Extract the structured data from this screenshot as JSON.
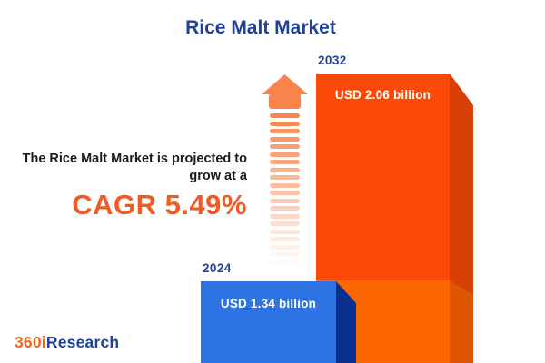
{
  "title": "Rice Malt Market",
  "projection": {
    "line1": "The Rice Malt Market is projected to",
    "line2": "grow at a",
    "cagr_label": "CAGR 5.49%"
  },
  "bars": [
    {
      "year": "2024",
      "value_label": "USD 1.34 billion"
    },
    {
      "year": "2032",
      "value_label": "USD 2.06 billion"
    }
  ],
  "arrow": {
    "dash_count": 20
  },
  "logo": {
    "prefix": "360i",
    "suffix": "Research"
  },
  "colors": {
    "title_blue": "#21409B",
    "text_dark": "#1B1B1B",
    "accent_orange": "#F15A22",
    "blue_front": "#2E73E4",
    "blue_side": "#08318F",
    "orange_front_top": "#FA4A06",
    "orange_front_bottom": "#FD6700",
    "orange_side_top": "#D84008",
    "orange_side_bottom": "#DE5502",
    "arrow_orange": "#F9854D",
    "dash_orange": "#F8854A",
    "logo_orange": "#F26322",
    "logo_blue": "#21409A",
    "background": "#FFFFFF"
  },
  "chart_data": {
    "type": "bar",
    "orientation": "vertical",
    "title": "Rice Malt Market",
    "categories": [
      "2024",
      "2032"
    ],
    "values": [
      1.34,
      2.06
    ],
    "unit": "USD billion",
    "value_labels": [
      "USD 1.34 billion",
      "USD 2.06 billion"
    ],
    "bar_colors": [
      "#2E73E4",
      "#FA4A06"
    ],
    "cagr_percent": 5.49,
    "annotation": "The Rice Malt Market is projected to grow at a CAGR 5.49%",
    "grid": false,
    "legend": false,
    "axes_shown": false
  }
}
